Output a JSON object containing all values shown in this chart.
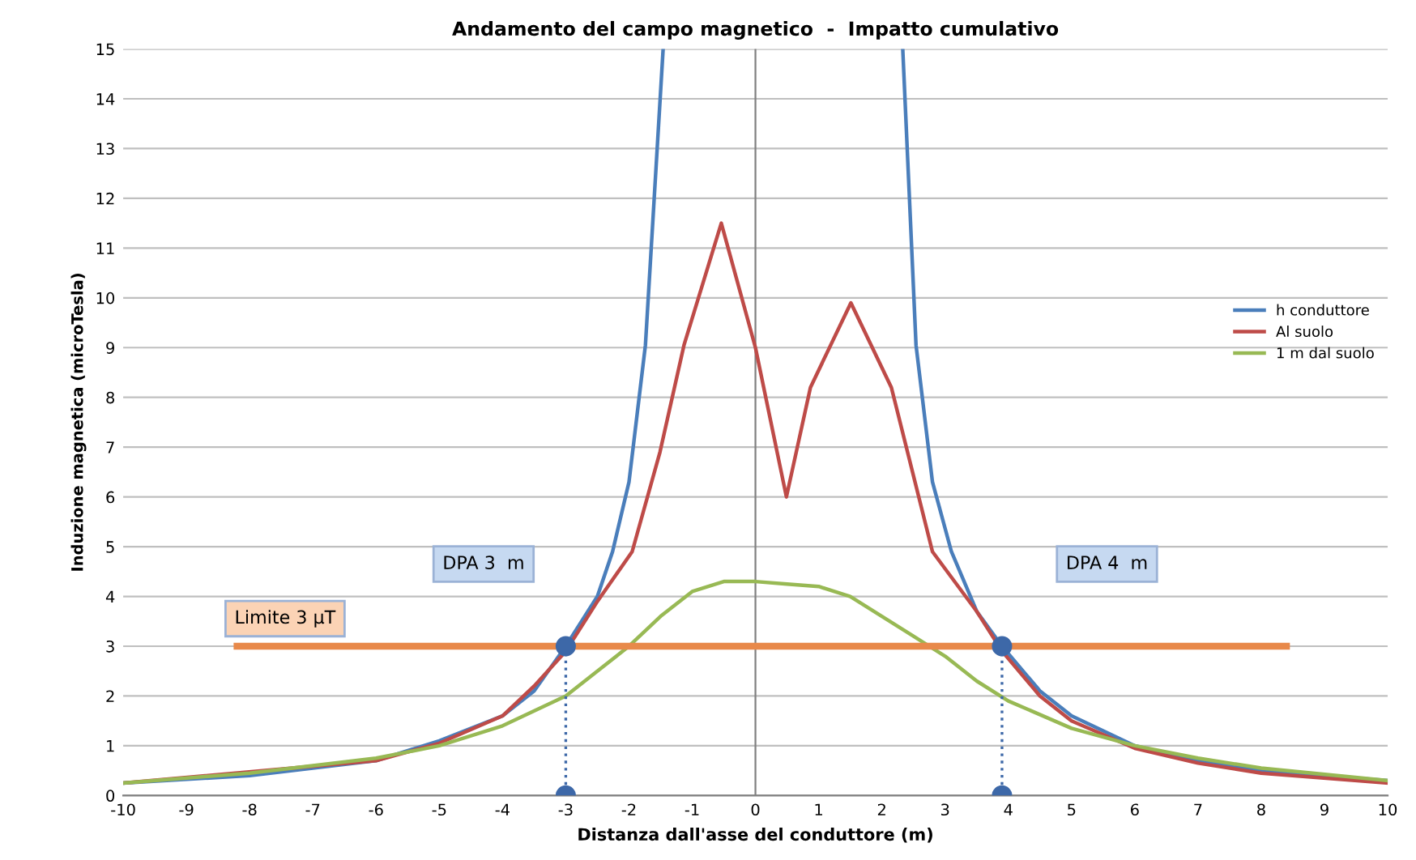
{
  "chart_data": {
    "type": "line",
    "title": "Andamento del campo magnetico  -  Impatto cumulativo",
    "xlabel": "Distanza dall'asse del conduttore (m)",
    "ylabel": "Induzione magnetica (microTesla)",
    "xlim": [
      -10,
      10
    ],
    "xticks": [
      -10,
      -9,
      -8,
      -7,
      -6,
      -5,
      -4,
      -3,
      -2,
      -1,
      0,
      1,
      2,
      3,
      4,
      5,
      6,
      7,
      8,
      9,
      10
    ],
    "ylim": [
      0,
      15
    ],
    "yticks": [
      0,
      1,
      2,
      3,
      4,
      5,
      6,
      7,
      8,
      9,
      10,
      11,
      12,
      13,
      14,
      15
    ],
    "grid": "y",
    "legend": "right",
    "line_style": "solid",
    "marker": "none",
    "series": [
      {
        "name": "h conduttore",
        "color": "#4a7ebb",
        "x": [
          -10,
          -8,
          -6,
          -5,
          -4,
          -3.5,
          -3,
          -2.5,
          -2.26,
          -2,
          -1.74,
          -1.46,
          0,
          2.33,
          2.54,
          2.8,
          3.1,
          3.5,
          3.9,
          4.5,
          5,
          6,
          7,
          8,
          10
        ],
        "values": [
          0.25,
          0.4,
          0.7,
          1.1,
          1.6,
          2.1,
          3.0,
          4.0,
          4.9,
          6.3,
          9.05,
          15,
          null,
          15,
          9.05,
          6.3,
          4.9,
          3.7,
          3.0,
          2.1,
          1.6,
          1.0,
          0.7,
          0.5,
          0.3
        ]
      },
      {
        "name": "Al suolo",
        "color": "#be4b48",
        "x": [
          -10,
          -6,
          -5,
          -4,
          -3.5,
          -3,
          -2.5,
          -1.95,
          -1.51,
          -1.13,
          -0.54,
          0,
          0.49,
          0.87,
          1.51,
          2.15,
          2.8,
          3.5,
          3.9,
          4.5,
          5,
          6,
          7,
          8,
          10
        ],
        "values": [
          0.25,
          0.7,
          1.05,
          1.6,
          2.2,
          2.9,
          3.9,
          4.9,
          6.9,
          9.05,
          11.5,
          9.0,
          6.0,
          8.2,
          9.9,
          8.2,
          4.9,
          3.7,
          2.9,
          2.0,
          1.5,
          0.95,
          0.65,
          0.45,
          0.25
        ]
      },
      {
        "name": "1 m dal suolo",
        "color": "#98b954",
        "x": [
          -10,
          -8,
          -6,
          -5,
          -4,
          -3,
          -2.5,
          -2,
          -1.5,
          -1,
          -0.5,
          0,
          0.5,
          1,
          1.5,
          2,
          2.5,
          3,
          3.5,
          4,
          5,
          6,
          7,
          8,
          10
        ],
        "values": [
          0.25,
          0.45,
          0.75,
          1.0,
          1.4,
          2.0,
          2.5,
          3.0,
          3.6,
          4.1,
          4.3,
          4.3,
          4.25,
          4.2,
          4.0,
          3.6,
          3.2,
          2.8,
          2.3,
          1.9,
          1.35,
          1.0,
          0.75,
          0.55,
          0.3
        ]
      },
      {
        "color": "#e8894a",
        "x": [
          -8.2,
          8.4
        ],
        "values": [
          3,
          3
        ],
        "line_style": "solid"
      },
      {
        "color": "#3d68a8",
        "x": [
          -3,
          -3
        ],
        "values": [
          3,
          0
        ],
        "line_style": "dotted",
        "marker": "circle"
      },
      {
        "color": "#3d68a8",
        "x": [
          3.9,
          3.9
        ],
        "values": [
          3,
          0
        ],
        "line_style": "dotted",
        "marker": "circle"
      }
    ],
    "ref_lines": [
      {
        "axis": "x",
        "value": 0,
        "color": "#808080"
      }
    ],
    "annotations": [
      "Limite 3 μT",
      "DPA 3  m",
      "DPA 4  m"
    ]
  }
}
